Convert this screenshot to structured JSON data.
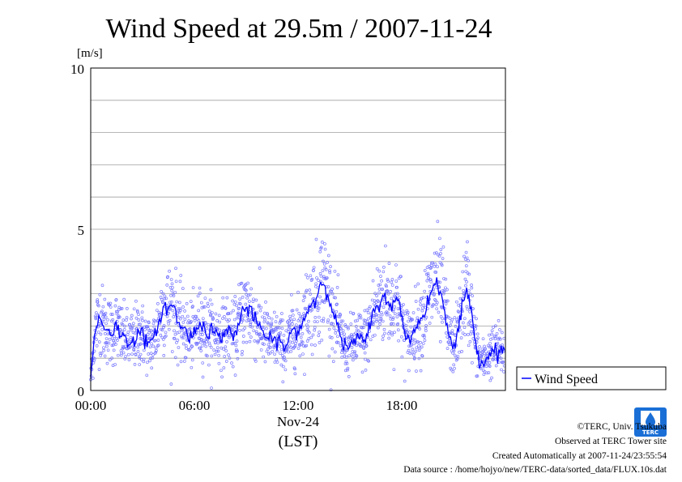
{
  "chart_data": {
    "type": "scatter",
    "title": "Wind Speed at 29.5m / 2007-11-24",
    "ylabel": "[m/s]",
    "xlabel": "(LST)",
    "xdate_label": "Nov-24",
    "ylim": [
      0,
      10
    ],
    "xlim": [
      "00:00",
      "24:00"
    ],
    "y_ticks": [
      "0",
      "5",
      "10"
    ],
    "x_ticks": [
      "00:00",
      "06:00",
      "12:00",
      "18:00"
    ],
    "grid": true,
    "legend_position": "right-bottom",
    "series": [
      {
        "name": "Wind Speed",
        "color": "#0000ff",
        "marker_color": "#7777ff",
        "x_hours": [
          0.0,
          0.25,
          0.5,
          0.75,
          1.0,
          1.25,
          1.5,
          1.75,
          2.0,
          2.25,
          2.5,
          2.75,
          3.0,
          3.25,
          3.5,
          3.75,
          4.0,
          4.25,
          4.5,
          4.75,
          5.0,
          5.25,
          5.5,
          5.75,
          6.0,
          6.25,
          6.5,
          6.75,
          7.0,
          7.25,
          7.5,
          7.75,
          8.0,
          8.25,
          8.5,
          8.75,
          9.0,
          9.25,
          9.5,
          9.75,
          10.0,
          10.25,
          10.5,
          10.75,
          11.0,
          11.25,
          11.5,
          11.75,
          12.0,
          12.25,
          12.5,
          12.75,
          13.0,
          13.25,
          13.5,
          13.75,
          14.0,
          14.25,
          14.5,
          14.75,
          15.0,
          15.25,
          15.5,
          15.75,
          16.0,
          16.25,
          16.5,
          16.75,
          17.0,
          17.25,
          17.5,
          17.75,
          18.0,
          18.25,
          18.5,
          18.75,
          19.0,
          19.25,
          19.5,
          19.75,
          20.0,
          20.25,
          20.5,
          20.75,
          21.0,
          21.25,
          21.5,
          21.75,
          22.0,
          22.25,
          22.5,
          22.75,
          23.0,
          23.25,
          23.5,
          23.75
        ],
        "values": [
          0.4,
          1.8,
          2.3,
          2.0,
          1.9,
          1.8,
          2.0,
          1.7,
          1.6,
          1.5,
          1.6,
          1.8,
          1.7,
          1.5,
          1.4,
          1.7,
          2.3,
          2.6,
          2.5,
          2.7,
          2.2,
          2.0,
          1.8,
          1.7,
          1.8,
          2.0,
          2.1,
          1.8,
          1.9,
          1.7,
          1.7,
          1.8,
          1.9,
          1.6,
          2.0,
          2.4,
          2.6,
          2.4,
          2.2,
          2.0,
          1.8,
          1.6,
          1.5,
          1.6,
          1.5,
          1.3,
          1.6,
          1.9,
          1.8,
          2.1,
          2.4,
          2.7,
          2.8,
          3.2,
          3.4,
          3.0,
          2.5,
          2.0,
          1.6,
          1.3,
          1.4,
          1.5,
          1.6,
          1.5,
          1.7,
          2.2,
          2.5,
          2.8,
          2.9,
          2.8,
          2.6,
          2.9,
          2.2,
          1.6,
          1.7,
          1.9,
          2.1,
          2.3,
          2.8,
          3.1,
          3.4,
          3.0,
          2.6,
          1.6,
          1.3,
          1.8,
          2.6,
          3.2,
          2.5,
          1.5,
          1.0,
          0.9,
          1.1,
          1.2,
          1.3,
          1.2
        ]
      }
    ]
  },
  "legend": {
    "label": "Wind Speed"
  },
  "credits": {
    "copyright": "©TERC, Univ. Tsukuba",
    "observed": "Observed at TERC Tower site",
    "created": "Created Automatically at 2007-11-24/23:55:54",
    "source": "Data source : /home/hojyo/new/TERC-data/sorted_data/FLUX.10s.dat"
  },
  "logo": {
    "text": "TERC",
    "color": "#1a6fd6"
  }
}
